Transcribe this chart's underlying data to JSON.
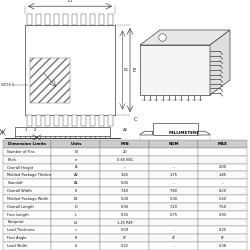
{
  "background_color": "#ffffff",
  "line_color": "#404040",
  "text_color": "#202020",
  "table_rows": [
    [
      "Number of Pins",
      "N",
      "20",
      "",
      ""
    ],
    [
      "Pitch",
      "e",
      "0.65 BSC",
      "",
      ""
    ],
    [
      "Overall Height",
      "A",
      "–",
      "–",
      "2.00"
    ],
    [
      "Molded Package Thickness",
      "A2",
      "1.65",
      "1.75",
      "1.85"
    ],
    [
      "Standoff",
      "A1",
      "0.05",
      "–",
      "–"
    ],
    [
      "Overall Width",
      "E",
      "7.40",
      "7.80",
      "8.20"
    ],
    [
      "Molded Package Width",
      "E1",
      "5.00",
      "5.30",
      "5.60"
    ],
    [
      "Overall Length",
      "D",
      "6.90",
      "7.20",
      "7.50"
    ],
    [
      "Foot Length",
      "L",
      "0.55",
      "0.75",
      "0.95"
    ],
    [
      "Footprint",
      "L1",
      "1.25 REF",
      "",
      ""
    ],
    [
      "Lead Thickness",
      "c",
      "0.09",
      "–",
      "0.25"
    ],
    [
      "Foot Angle",
      "θ",
      "0°",
      "4°",
      "8°"
    ],
    [
      "Lead Width",
      "b",
      "0.22",
      "–",
      "0.38"
    ]
  ]
}
